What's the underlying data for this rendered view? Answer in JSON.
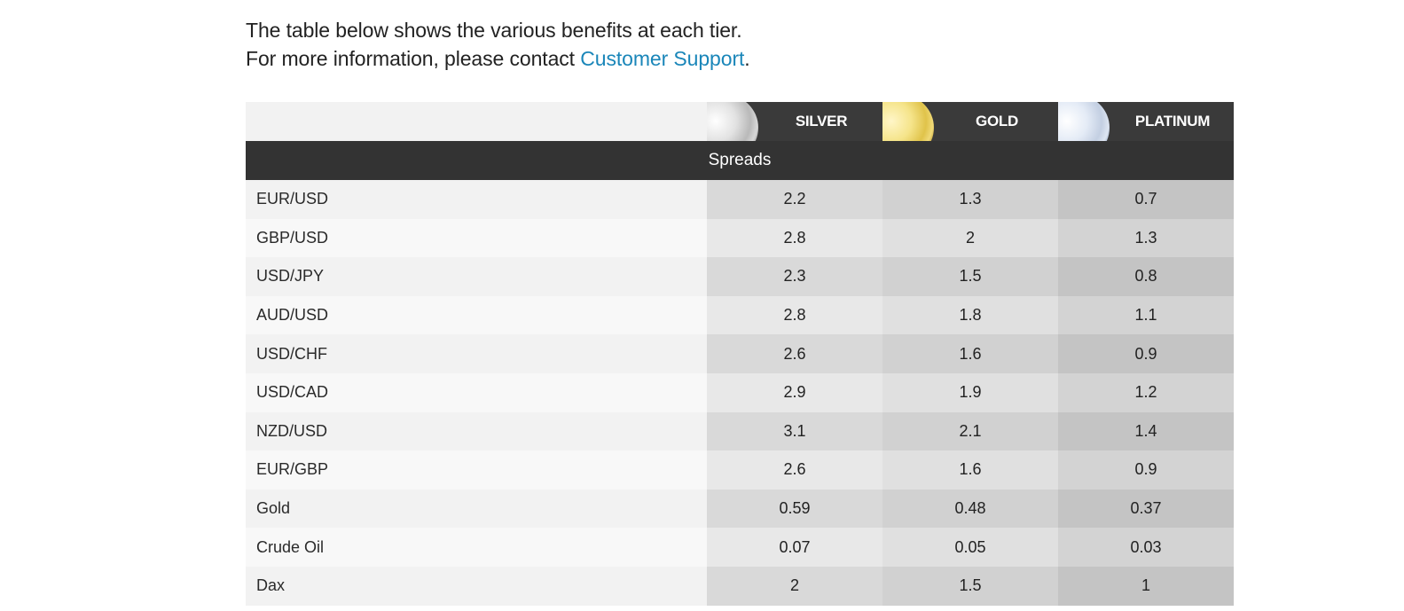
{
  "intro": {
    "line1": "The table below shows the various benefits at each tier.",
    "line2_prefix": "For more information, please contact ",
    "support_link": "Customer Support",
    "line2_suffix": "."
  },
  "table": {
    "tiers": [
      {
        "name": "SILVER",
        "medal_color": "#c0c0c0"
      },
      {
        "name": "GOLD",
        "medal_color": "#e8d060"
      },
      {
        "name": "PLATINUM",
        "medal_color": "#cfd9ea"
      }
    ],
    "section_title": "Spreads",
    "rows": [
      {
        "label": "EUR/USD",
        "values": [
          "2.2",
          "1.3",
          "0.7"
        ]
      },
      {
        "label": "GBP/USD",
        "values": [
          "2.8",
          "2",
          "1.3"
        ]
      },
      {
        "label": "USD/JPY",
        "values": [
          "2.3",
          "1.5",
          "0.8"
        ]
      },
      {
        "label": "AUD/USD",
        "values": [
          "2.8",
          "1.8",
          "1.1"
        ]
      },
      {
        "label": "USD/CHF",
        "values": [
          "2.6",
          "1.6",
          "0.9"
        ]
      },
      {
        "label": "USD/CAD",
        "values": [
          "2.9",
          "1.9",
          "1.2"
        ]
      },
      {
        "label": "NZD/USD",
        "values": [
          "3.1",
          "2.1",
          "1.4"
        ]
      },
      {
        "label": "EUR/GBP",
        "values": [
          "2.6",
          "1.6",
          "0.9"
        ]
      },
      {
        "label": "Gold",
        "values": [
          "0.59",
          "0.48",
          "0.37"
        ]
      },
      {
        "label": "Crude Oil",
        "values": [
          "0.07",
          "0.05",
          "0.03"
        ]
      },
      {
        "label": "Dax",
        "values": [
          "2",
          "1.5",
          "1"
        ]
      }
    ]
  },
  "colors": {
    "link": "#1a86b9",
    "header_dark": "#3a3a3a",
    "section_dark": "#333333"
  }
}
